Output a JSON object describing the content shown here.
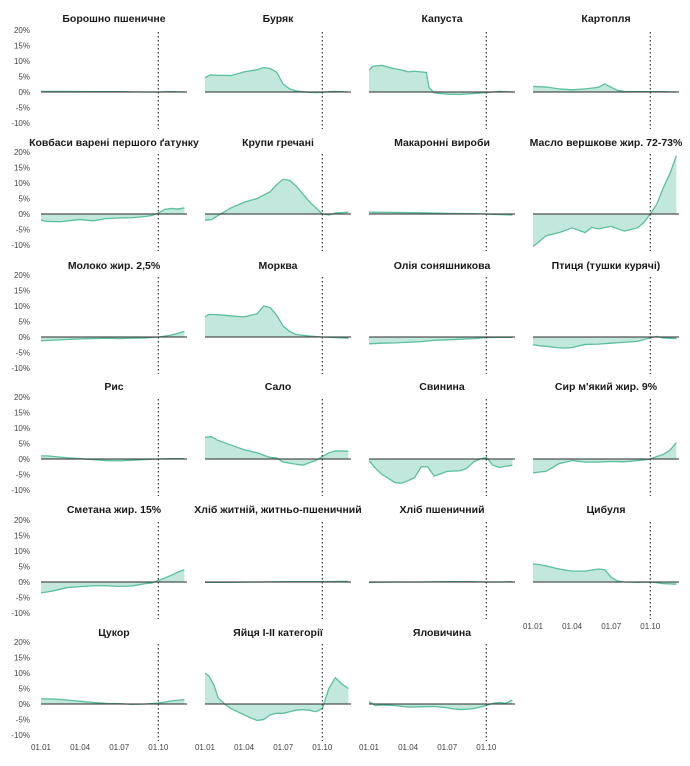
{
  "colors": {
    "fill": "#c2e7dc",
    "line": "#5cbf9e",
    "axis": "#2a2a2a",
    "text": "#1a1a1a",
    "vline": "#333333"
  },
  "chart_data": {
    "type": "area",
    "y_tick_labels": [
      "20%",
      "15%",
      "10%",
      "5%",
      "0%",
      "-5%",
      "-10%"
    ],
    "y_tick_values": [
      20,
      15,
      10,
      5,
      0,
      -5,
      -10
    ],
    "ylim": [
      -10,
      20
    ],
    "x_tick_labels": [
      "01.01",
      "01.04",
      "01.07",
      "01.10"
    ],
    "x_tick_values": [
      0,
      3,
      6,
      9
    ],
    "xlim": [
      0,
      11.2
    ],
    "vline_x": 9,
    "grid": false,
    "panels": [
      {
        "title": "Борошно пшеничне",
        "x": [
          0,
          2,
          4,
          6,
          8,
          9,
          10,
          11
        ],
        "y": [
          0.2,
          0.2,
          0.1,
          0.1,
          0,
          0,
          0.1,
          0
        ]
      },
      {
        "title": "Буряк",
        "x": [
          0,
          0.4,
          1,
          2,
          3,
          4,
          4.5,
          5,
          5.5,
          6,
          6.5,
          7,
          7.5,
          8,
          8.5,
          9,
          9.5,
          10,
          11
        ],
        "y": [
          4.6,
          5.5,
          5.4,
          5.3,
          6.5,
          7.2,
          7.9,
          7.6,
          6.4,
          2.5,
          1,
          0.3,
          0.1,
          -0.1,
          -0.2,
          -0.1,
          0.1,
          0.2,
          0
        ]
      },
      {
        "title": "Капуста",
        "x": [
          0,
          0.3,
          1,
          1.5,
          2,
          2.5,
          3,
          3.5,
          4,
          4.4,
          4.6,
          5,
          6,
          7,
          8,
          9,
          10,
          11
        ],
        "y": [
          7,
          8.3,
          8.6,
          8,
          7.5,
          7.1,
          6.5,
          6.7,
          6.5,
          6.3,
          1.5,
          -0.3,
          -0.7,
          -0.8,
          -0.5,
          -0.2,
          0.2,
          0
        ]
      },
      {
        "title": "Картопля",
        "x": [
          0,
          1,
          2,
          3,
          4,
          5,
          5.5,
          6,
          6.5,
          7,
          8,
          9,
          10,
          11
        ],
        "y": [
          1.8,
          1.6,
          1,
          0.7,
          1,
          1.5,
          2.6,
          1.5,
          0.5,
          0.2,
          0.1,
          0.1,
          0.1,
          0
        ]
      },
      {
        "title": "Ковбаси варені першого ґатунку",
        "x": [
          0,
          0.5,
          1.5,
          2.5,
          3,
          4,
          5,
          6,
          7,
          8,
          8.5,
          9,
          9.5,
          10,
          10.5,
          11
        ],
        "y": [
          -2,
          -2.4,
          -2.5,
          -2,
          -1.8,
          -2.2,
          -1.5,
          -1.3,
          -1.2,
          -0.8,
          -0.5,
          0.3,
          1.5,
          1.8,
          1.6,
          2
        ]
      },
      {
        "title": "Крупи гречані",
        "x": [
          0,
          0.5,
          1,
          2,
          3,
          4,
          5,
          5.5,
          6,
          6.5,
          7,
          8,
          9,
          9.5,
          10,
          11
        ],
        "y": [
          -2,
          -1.8,
          -0.5,
          2,
          3.8,
          5,
          7.2,
          9.5,
          11.2,
          10.8,
          9,
          4,
          0,
          -0.3,
          0.3,
          0.6
        ]
      },
      {
        "title": "Макаронні вироби",
        "x": [
          0,
          2,
          4,
          6,
          8,
          9,
          10,
          11
        ],
        "y": [
          0.6,
          0.5,
          0.4,
          0.2,
          0.1,
          0,
          -0.2,
          -0.3
        ]
      },
      {
        "title": "Масло вершкове  жир. 72-73%",
        "x": [
          0,
          0.3,
          1,
          2,
          3,
          4,
          4.5,
          5,
          6,
          7,
          8,
          8.5,
          9,
          9.5,
          10,
          10.5,
          11
        ],
        "y": [
          -10.5,
          -9.5,
          -7,
          -6,
          -4.5,
          -6,
          -4.3,
          -4.8,
          -4,
          -5.5,
          -4.5,
          -2.8,
          0,
          3.2,
          8.5,
          13,
          18.8
        ]
      },
      {
        "title": "Молоко жир. 2,5%",
        "x": [
          0,
          1,
          2,
          3,
          4,
          5,
          6,
          7,
          8,
          9,
          10,
          11
        ],
        "y": [
          -1.2,
          -1,
          -0.8,
          -0.6,
          -0.5,
          -0.4,
          -0.5,
          -0.4,
          -0.3,
          0,
          0.6,
          1.8
        ]
      },
      {
        "title": "Морква",
        "x": [
          0,
          0.3,
          1,
          2,
          3,
          4,
          4.5,
          5,
          5.5,
          6,
          6.5,
          7,
          8,
          9,
          10,
          11
        ],
        "y": [
          6.5,
          7.3,
          7.2,
          6.8,
          6.5,
          7.5,
          10,
          9.5,
          7,
          3.5,
          1.8,
          0.8,
          0.3,
          0,
          -0.2,
          -0.4
        ]
      },
      {
        "title": "Олія соняшникова",
        "x": [
          0,
          1,
          2,
          3,
          4,
          5,
          6,
          7,
          8,
          9,
          10,
          11
        ],
        "y": [
          -2.2,
          -2,
          -1.9,
          -1.7,
          -1.5,
          -1.1,
          -0.9,
          -0.7,
          -0.5,
          -0.2,
          -0.1,
          -0.1
        ]
      },
      {
        "title": "Птиця (тушки курячі)",
        "x": [
          0,
          0.5,
          1,
          2,
          2.5,
          3,
          4,
          5,
          6,
          7,
          8,
          9,
          9.5,
          10,
          11
        ],
        "y": [
          -2.5,
          -2.8,
          -3,
          -3.5,
          -3.6,
          -3.4,
          -2.4,
          -2.3,
          -2,
          -1.7,
          -1.4,
          -0.3,
          0.2,
          -0.3,
          -0.5
        ]
      },
      {
        "title": "Рис",
        "x": [
          0,
          0.5,
          1,
          2,
          3,
          4,
          5,
          6,
          7,
          8,
          9,
          10,
          11
        ],
        "y": [
          1,
          1,
          0.8,
          0.4,
          0.1,
          -0.2,
          -0.5,
          -0.6,
          -0.4,
          -0.2,
          0,
          0.1,
          0.1
        ]
      },
      {
        "title": "Сало",
        "x": [
          0,
          0.5,
          1,
          2,
          3,
          4,
          5,
          5.5,
          6,
          7,
          7.5,
          8,
          8.5,
          9,
          9.5,
          10,
          10.5,
          11
        ],
        "y": [
          7,
          7.2,
          6,
          4.5,
          3,
          2,
          0.5,
          0.3,
          -1,
          -1.7,
          -2,
          -1.2,
          -0.5,
          0.8,
          2,
          2.6,
          2.6,
          2.5
        ]
      },
      {
        "title": "Свинина",
        "x": [
          0,
          0.5,
          1,
          2,
          2.5,
          3,
          3.5,
          4,
          4.5,
          5,
          6,
          7,
          7.5,
          8,
          8.5,
          9,
          9.5,
          10,
          11
        ],
        "y": [
          -0.5,
          -3,
          -5,
          -7.6,
          -7.8,
          -7,
          -6,
          -2.5,
          -2.5,
          -5.5,
          -4,
          -3.8,
          -3,
          -1,
          0,
          0.5,
          -2,
          -2.7,
          -2
        ]
      },
      {
        "title": "Сир м'який жир. 9%",
        "x": [
          0,
          0.5,
          1,
          2,
          3,
          4,
          5,
          6,
          7,
          8,
          8.5,
          9,
          9.5,
          10,
          10.5,
          11
        ],
        "y": [
          -4.5,
          -4.2,
          -4,
          -1.5,
          -0.5,
          -1,
          -1,
          -0.8,
          -0.9,
          -0.5,
          -0.3,
          0,
          0.8,
          1.5,
          2.8,
          5.3
        ]
      },
      {
        "title": "Сметана жир. 15%",
        "x": [
          0,
          0.5,
          1,
          2,
          3,
          4,
          5,
          6,
          7,
          8,
          8.5,
          9,
          9.5,
          10,
          10.5,
          11
        ],
        "y": [
          -3.5,
          -3.2,
          -2.8,
          -1.8,
          -1.5,
          -1.2,
          -1.2,
          -1.4,
          -1.3,
          -0.5,
          -0.3,
          0.5,
          1.3,
          2.2,
          3.2,
          4
        ]
      },
      {
        "title": "Хліб житній, житньо-пшеничний",
        "x": [
          0,
          2,
          4,
          6,
          8,
          9,
          10,
          11
        ],
        "y": [
          -0.1,
          -0.1,
          0,
          0.1,
          0.1,
          0.1,
          0.2,
          0.2
        ]
      },
      {
        "title": "Хліб пшеничний",
        "x": [
          0,
          2,
          4,
          6,
          8,
          9,
          10,
          11
        ],
        "y": [
          -0.1,
          0,
          0,
          0.1,
          0.1,
          0,
          0,
          0.1
        ]
      },
      {
        "title": "Цибуля",
        "x": [
          0,
          0.5,
          1,
          2,
          3,
          4,
          5,
          5.5,
          6,
          6.5,
          7,
          8,
          9,
          10,
          11
        ],
        "y": [
          5.8,
          5.6,
          5.2,
          4.2,
          3.5,
          3.5,
          4.2,
          4,
          1.5,
          0.3,
          0,
          -0.1,
          0,
          -0.5,
          -0.7
        ]
      },
      {
        "title": "Цукор",
        "x": [
          0,
          1,
          2,
          3,
          4,
          5,
          6,
          7,
          8,
          9,
          9.5,
          10,
          11
        ],
        "y": [
          1.7,
          1.6,
          1.3,
          0.9,
          0.5,
          0.2,
          0.1,
          -0.1,
          0,
          0.3,
          0.6,
          1,
          1.4
        ]
      },
      {
        "title": "Яйця   I-II категорії",
        "x": [
          0,
          0.3,
          0.7,
          1,
          1.5,
          2,
          2.5,
          3,
          3.5,
          4,
          4.5,
          5,
          5.5,
          6,
          6.5,
          7,
          7.5,
          8,
          8.5,
          9,
          9.5,
          10,
          10.5,
          11
        ],
        "y": [
          10,
          9,
          6,
          2,
          0,
          -1.5,
          -2.5,
          -3.5,
          -4.5,
          -5.3,
          -5,
          -3.5,
          -3,
          -3,
          -2.5,
          -2,
          -1.8,
          -2,
          -2.5,
          -1.5,
          5,
          8.5,
          6.5,
          5
        ]
      },
      {
        "title": "Яловичина",
        "x": [
          0,
          0.5,
          1,
          2,
          3,
          4,
          5,
          6,
          6.5,
          7,
          7.5,
          8,
          8.5,
          9,
          9.5,
          10,
          10.5,
          11
        ],
        "y": [
          0.8,
          -0.5,
          -0.3,
          -0.5,
          -1,
          -0.9,
          -0.8,
          -1.2,
          -1.6,
          -1.8,
          -1.7,
          -1.5,
          -1,
          -0.5,
          0.2,
          0.5,
          0.2,
          1.3
        ]
      }
    ]
  }
}
